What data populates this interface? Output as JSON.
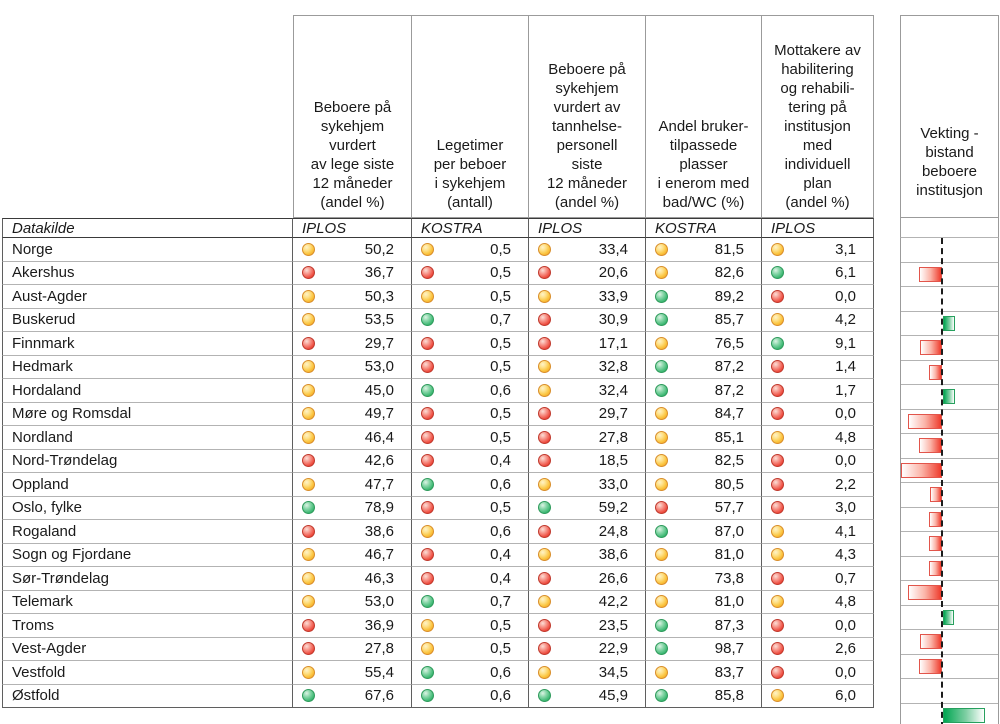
{
  "chart_data": {
    "type": "table",
    "title": "",
    "source_row_label": "Datakilde",
    "columns": [
      {
        "header": "Beboere på\nsykehjem\nvurdert\nav lege siste\n12 måneder\n(andel %)",
        "source": "IPLOS"
      },
      {
        "header": "Legetimer\nper beboer\ni sykehjem\n(antall)",
        "source": "KOSTRA"
      },
      {
        "header": "Beboere på\nsykehjem\nvurdert av\ntannhelse-\npersonell\nsiste\n12 måneder\n(andel %)",
        "source": "IPLOS"
      },
      {
        "header": "Andel bruker-\ntilpassede\nplasser\ni enerom med\nbad/WC (%)",
        "source": "KOSTRA"
      },
      {
        "header": "Mottakere av\nhabilitering\nog rehabili-\ntering på\ninstitusjon\nmed\nindividuell\nplan\n(andel %)",
        "source": "IPLOS"
      }
    ],
    "bar_column_header": "Vekting -\nbistand\nbeboere\ninstitusjon",
    "bar_note": "deviation bar vs dashed national reference line; negative = red bar left, positive = green bar right; magnitude in px as drawn (no axis labels in figure)",
    "status_colors": {
      "red": "#ee4b3e",
      "yellow": "#fbc540",
      "green": "#3db873"
    },
    "bar_colors": {
      "negative": "#ee3b2c",
      "positive": "#00a651"
    },
    "rows": [
      {
        "name": "Norge",
        "values": [
          "50,2",
          "0,5",
          "33,4",
          "81,5",
          "3,1"
        ],
        "status": [
          "yellow",
          "yellow",
          "yellow",
          "yellow",
          "yellow"
        ],
        "bar": 0
      },
      {
        "name": "Akershus",
        "values": [
          "36,7",
          "0,5",
          "20,6",
          "82,6",
          "6,1"
        ],
        "status": [
          "red",
          "red",
          "red",
          "yellow",
          "green"
        ],
        "bar": -23
      },
      {
        "name": "Aust-Agder",
        "values": [
          "50,3",
          "0,5",
          "33,9",
          "89,2",
          "0,0"
        ],
        "status": [
          "yellow",
          "yellow",
          "yellow",
          "green",
          "red"
        ],
        "bar": 0
      },
      {
        "name": "Buskerud",
        "values": [
          "53,5",
          "0,7",
          "30,9",
          "85,7",
          "4,2"
        ],
        "status": [
          "yellow",
          "green",
          "red",
          "green",
          "yellow"
        ],
        "bar": 12
      },
      {
        "name": "Finnmark",
        "values": [
          "29,7",
          "0,5",
          "17,1",
          "76,5",
          "9,1"
        ],
        "status": [
          "red",
          "red",
          "red",
          "yellow",
          "green"
        ],
        "bar": -22
      },
      {
        "name": "Hedmark",
        "values": [
          "53,0",
          "0,5",
          "32,8",
          "87,2",
          "1,4"
        ],
        "status": [
          "yellow",
          "red",
          "yellow",
          "green",
          "red"
        ],
        "bar": -13
      },
      {
        "name": "Hordaland",
        "values": [
          "45,0",
          "0,6",
          "32,4",
          "87,2",
          "1,7"
        ],
        "status": [
          "yellow",
          "green",
          "yellow",
          "green",
          "red"
        ],
        "bar": 12
      },
      {
        "name": "Møre og Romsdal",
        "values": [
          "49,7",
          "0,5",
          "29,7",
          "84,7",
          "0,0"
        ],
        "status": [
          "yellow",
          "red",
          "red",
          "yellow",
          "red"
        ],
        "bar": -34
      },
      {
        "name": "Nordland",
        "values": [
          "46,4",
          "0,5",
          "27,8",
          "85,1",
          "4,8"
        ],
        "status": [
          "yellow",
          "red",
          "red",
          "yellow",
          "yellow"
        ],
        "bar": -23
      },
      {
        "name": "Nord-Trøndelag",
        "values": [
          "42,6",
          "0,4",
          "18,5",
          "82,5",
          "0,0"
        ],
        "status": [
          "red",
          "red",
          "red",
          "yellow",
          "red"
        ],
        "bar": -41
      },
      {
        "name": "Oppland",
        "values": [
          "47,7",
          "0,6",
          "33,0",
          "80,5",
          "2,2"
        ],
        "status": [
          "yellow",
          "green",
          "yellow",
          "yellow",
          "red"
        ],
        "bar": -12
      },
      {
        "name": "Oslo, fylke",
        "values": [
          "78,9",
          "0,5",
          "59,2",
          "57,7",
          "3,0"
        ],
        "status": [
          "green",
          "red",
          "green",
          "red",
          "red"
        ],
        "bar": -13
      },
      {
        "name": "Rogaland",
        "values": [
          "38,6",
          "0,6",
          "24,8",
          "87,0",
          "4,1"
        ],
        "status": [
          "red",
          "yellow",
          "red",
          "green",
          "yellow"
        ],
        "bar": -13
      },
      {
        "name": "Sogn og Fjordane",
        "values": [
          "46,7",
          "0,4",
          "38,6",
          "81,0",
          "4,3"
        ],
        "status": [
          "yellow",
          "red",
          "yellow",
          "yellow",
          "yellow"
        ],
        "bar": -13
      },
      {
        "name": "Sør-Trøndelag",
        "values": [
          "46,3",
          "0,4",
          "26,6",
          "73,8",
          "0,7"
        ],
        "status": [
          "yellow",
          "red",
          "red",
          "yellow",
          "red"
        ],
        "bar": -34
      },
      {
        "name": "Telemark",
        "values": [
          "53,0",
          "0,7",
          "42,2",
          "81,0",
          "4,8"
        ],
        "status": [
          "yellow",
          "green",
          "yellow",
          "yellow",
          "yellow"
        ],
        "bar": 11
      },
      {
        "name": "Troms",
        "values": [
          "36,9",
          "0,5",
          "23,5",
          "87,3",
          "0,0"
        ],
        "status": [
          "red",
          "yellow",
          "red",
          "green",
          "red"
        ],
        "bar": -22
      },
      {
        "name": "Vest-Agder",
        "values": [
          "27,8",
          "0,5",
          "22,9",
          "98,7",
          "2,6"
        ],
        "status": [
          "red",
          "yellow",
          "red",
          "green",
          "red"
        ],
        "bar": -23
      },
      {
        "name": "Vestfold",
        "values": [
          "55,4",
          "0,6",
          "34,5",
          "83,7",
          "0,0"
        ],
        "status": [
          "yellow",
          "green",
          "yellow",
          "yellow",
          "red"
        ],
        "bar": 0
      },
      {
        "name": "Østfold",
        "values": [
          "67,6",
          "0,6",
          "45,9",
          "85,8",
          "6,0"
        ],
        "status": [
          "green",
          "green",
          "green",
          "green",
          "yellow"
        ],
        "bar": 42
      }
    ]
  }
}
